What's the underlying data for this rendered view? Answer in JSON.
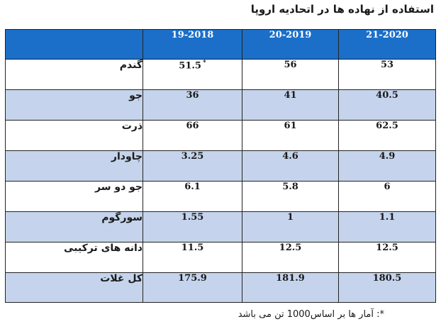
{
  "title": "استفاده از نهاده ها در اتحادیه اروپا",
  "table": {
    "headers": [
      "19-2018",
      "20-2019",
      "21-2020"
    ],
    "rows": [
      {
        "name": "گندم",
        "values": [
          "51.5",
          "56",
          "53"
        ],
        "mark": "*"
      },
      {
        "name": "جو",
        "values": [
          "36",
          "41",
          "40.5"
        ]
      },
      {
        "name": "ذرت",
        "values": [
          "66",
          "61",
          "62.5"
        ]
      },
      {
        "name": "چاودار",
        "values": [
          "3.25",
          "4.6",
          "4.9"
        ]
      },
      {
        "name": "جو دو سر",
        "values": [
          "6.1",
          "5.8",
          "6"
        ]
      },
      {
        "name": "سورگوم",
        "values": [
          "1.55",
          "1",
          "1.1"
        ]
      },
      {
        "name": "دانه های ترکیبی",
        "values": [
          "11.5",
          "12.5",
          "12.5"
        ]
      },
      {
        "name": "کل غلات",
        "values": [
          "175.9",
          "181.9",
          "180.5"
        ]
      }
    ]
  },
  "footnote": "*: آمار ها بر اساس1000 تن می باشد",
  "colors": {
    "header_bg": "#1b6fc9",
    "alt_row_bg": "#c5d4ec"
  }
}
